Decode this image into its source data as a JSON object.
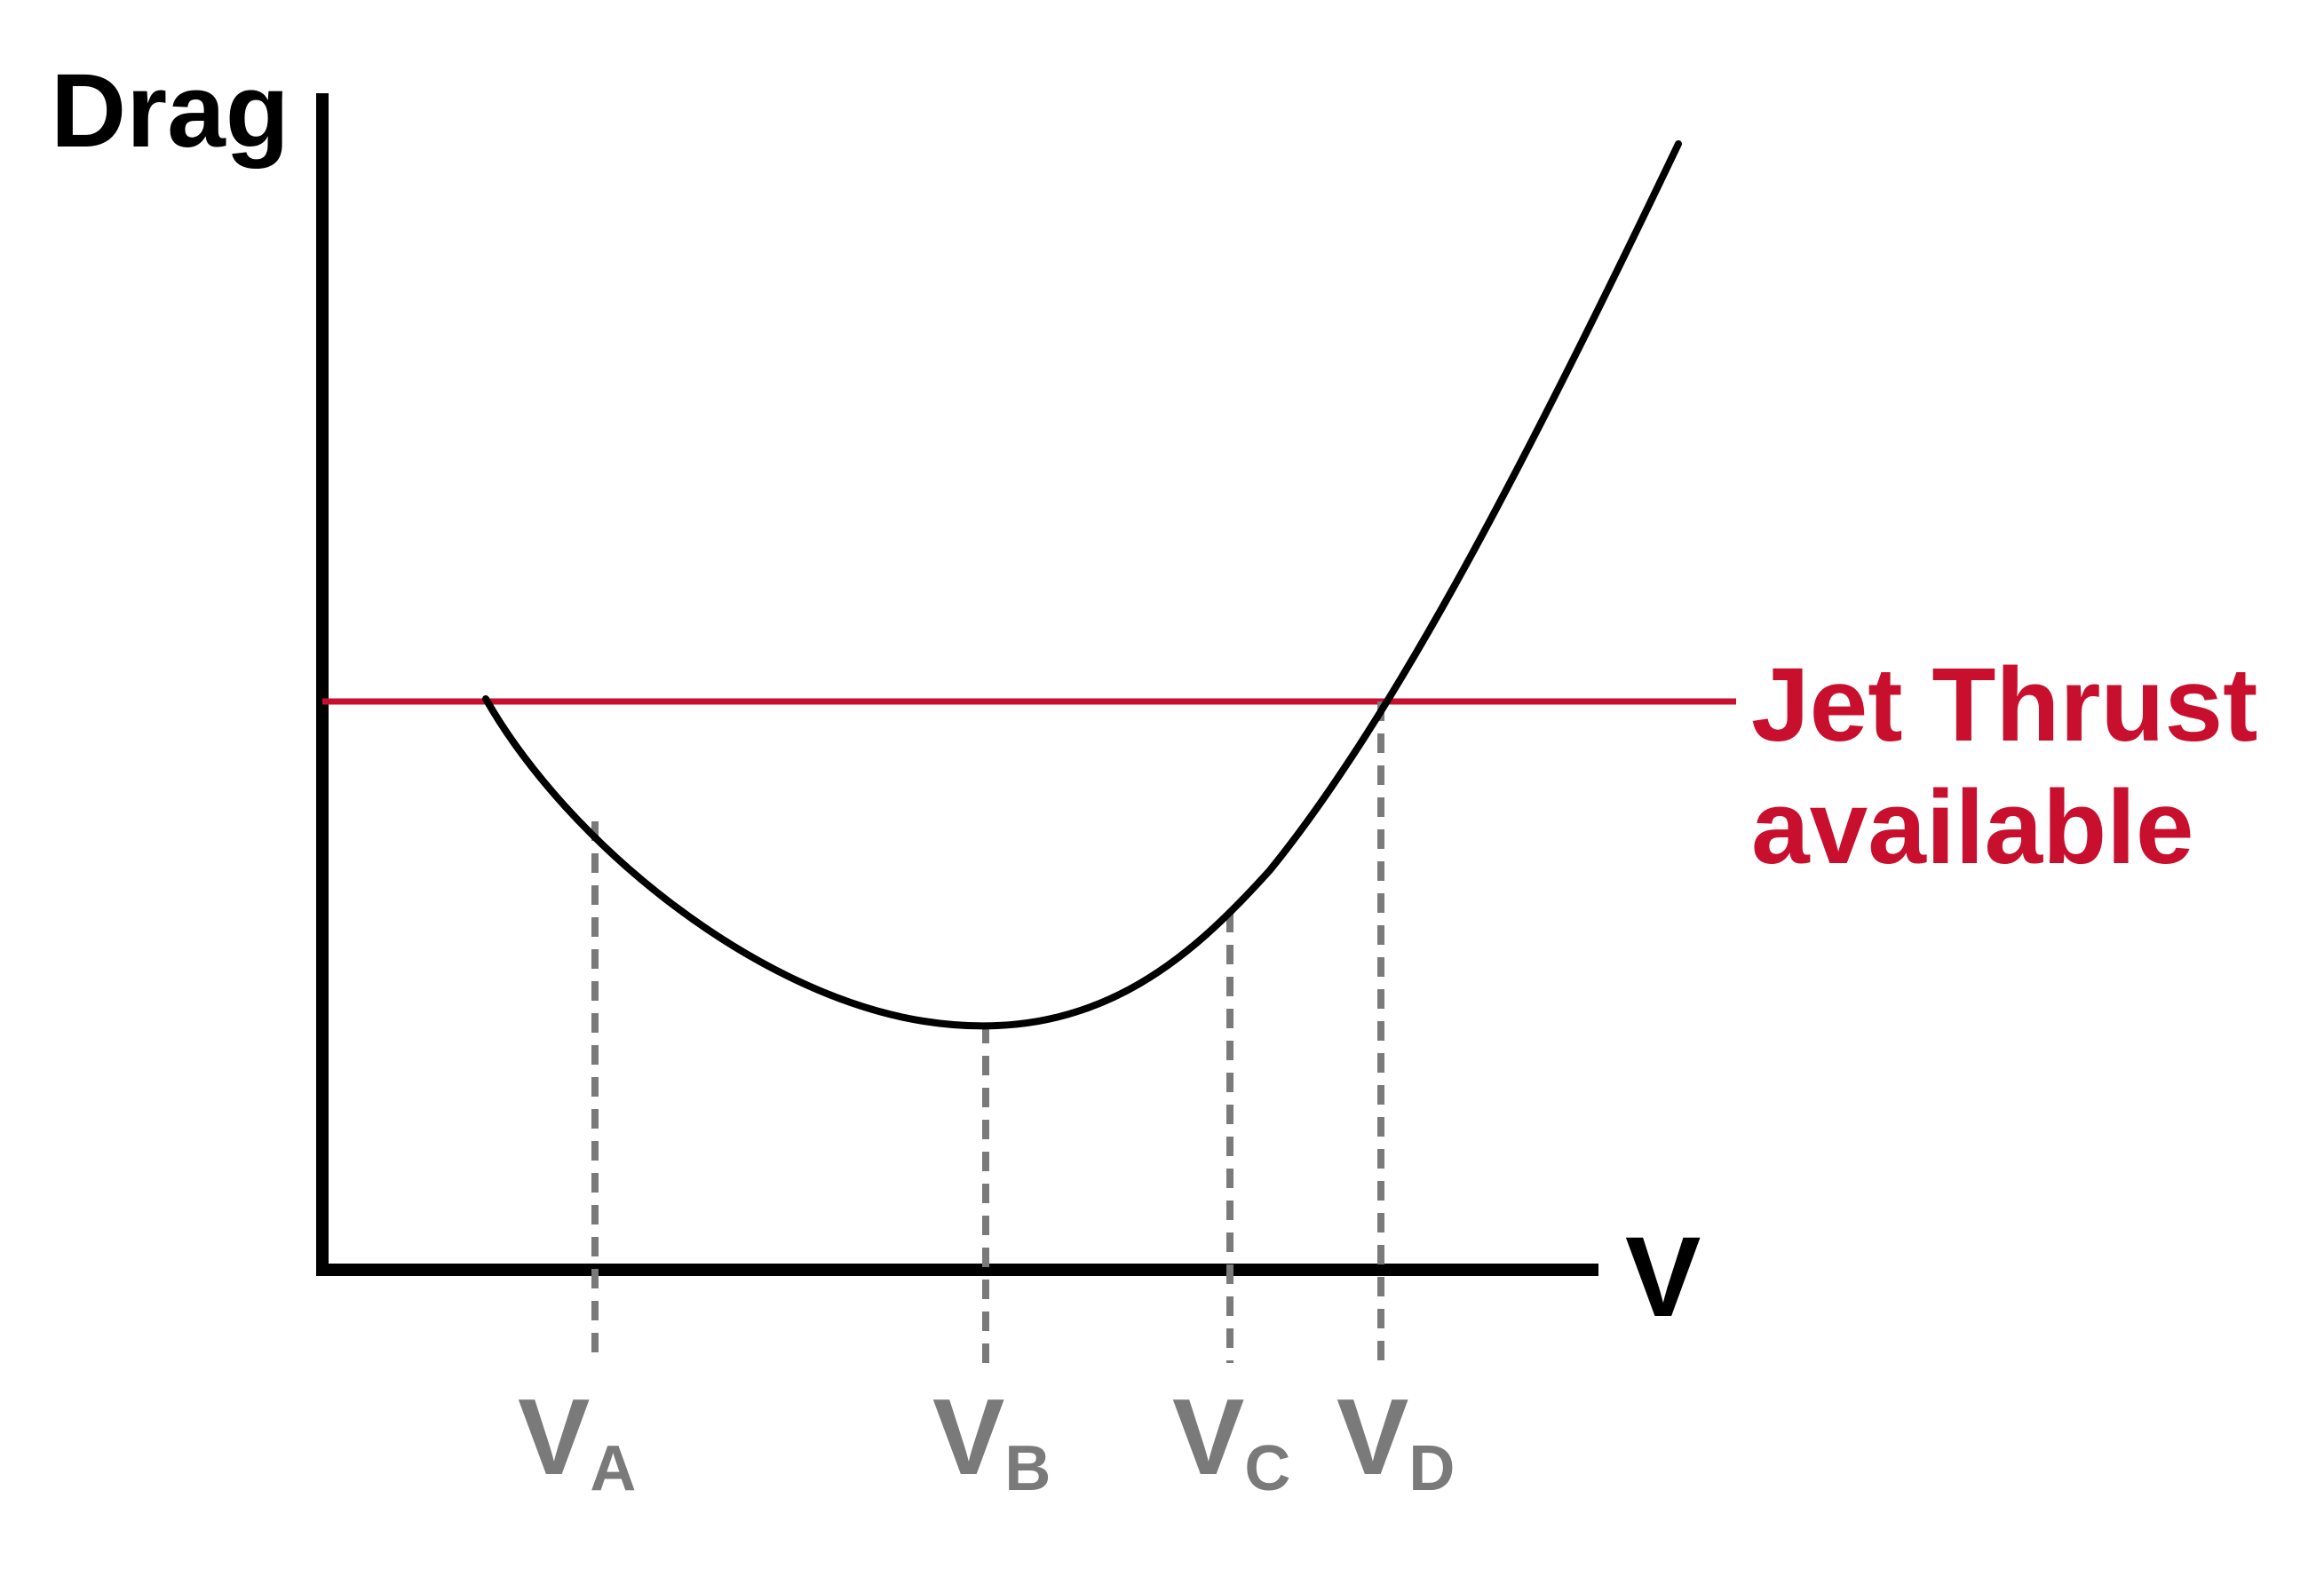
{
  "diagram": {
    "y_axis_label": "Drag",
    "x_axis_label": "V",
    "thrust_label_line1": "Jet Thrust",
    "thrust_label_line2": "available",
    "speed_markers": [
      {
        "symbol": "V",
        "subscript": "A"
      },
      {
        "symbol": "V",
        "subscript": "B"
      },
      {
        "symbol": "V",
        "subscript": "C"
      },
      {
        "symbol": "V",
        "subscript": "D"
      }
    ]
  },
  "colors": {
    "axis": "#000000",
    "drag_curve": "#000000",
    "thrust_line": "#c8102e",
    "thrust_text": "#c8102e",
    "marker_lines": "#7a7a7a",
    "marker_text": "#7a7a7a"
  }
}
